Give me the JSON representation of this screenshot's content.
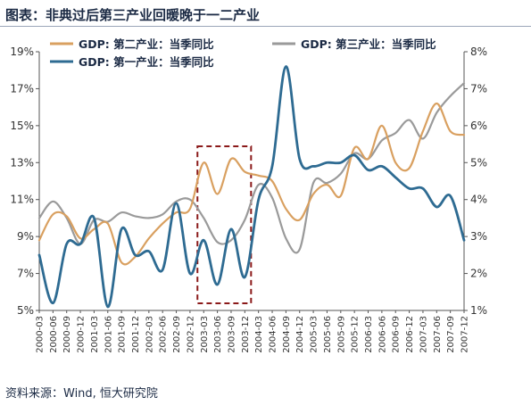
{
  "header": {
    "title": "图表：非典过后第三产业回暖晚于一二产业"
  },
  "footer": {
    "source": "资料来源：Wind, 恒大研究院"
  },
  "chart_data": {
    "type": "line",
    "title": "",
    "xlabel": "",
    "ylabel": "",
    "y_left": {
      "ticks": [
        "5%",
        "7%",
        "9%",
        "11%",
        "13%",
        "15%",
        "17%",
        "19%"
      ],
      "range": [
        5,
        19
      ]
    },
    "y_right": {
      "ticks": [
        "1%",
        "2%",
        "3%",
        "4%",
        "5%",
        "6%",
        "7%",
        "8%"
      ],
      "range": [
        1,
        8
      ]
    },
    "x_range": [
      "2000-03",
      "2007-12"
    ],
    "x_ticks": [
      "2000-03",
      "2000-06",
      "2000-09",
      "2000-12",
      "2001-03",
      "2001-06",
      "2001-09",
      "2001-12",
      "2002-03",
      "2002-06",
      "2002-09",
      "2002-12",
      "2003-03",
      "2003-06",
      "2003-09",
      "2003-12",
      "2004-03",
      "2004-06",
      "2004-09",
      "2004-12",
      "2005-03",
      "2005-06",
      "2005-09",
      "2005-12",
      "2006-03",
      "2006-06",
      "2006-09",
      "2006-12",
      "2007-03",
      "2007-06",
      "2007-09",
      "2007-12"
    ],
    "highlight_box": {
      "from": "2003-03",
      "to": "2003-12",
      "color": "#8b1a1a"
    },
    "legend_position": "top",
    "grid": false,
    "series": [
      {
        "name": "GDP: 第二产业：当季同比",
        "axis": "left",
        "color": "#d9a060",
        "points": [
          [
            "2000-03",
            8.8
          ],
          [
            "2000-06",
            10.2
          ],
          [
            "2000-09",
            10.1
          ],
          [
            "2000-12",
            8.9
          ],
          [
            "2001-03",
            9.4
          ],
          [
            "2001-06",
            9.7
          ],
          [
            "2001-09",
            7.6
          ],
          [
            "2001-12",
            7.9
          ],
          [
            "2002-03",
            8.9
          ],
          [
            "2002-06",
            9.7
          ],
          [
            "2002-09",
            10.3
          ],
          [
            "2002-12",
            10.5
          ],
          [
            "2003-03",
            13.0
          ],
          [
            "2003-06",
            11.3
          ],
          [
            "2003-09",
            13.2
          ],
          [
            "2003-12",
            12.5
          ],
          [
            "2004-03",
            12.3
          ],
          [
            "2004-06",
            12.0
          ],
          [
            "2004-09",
            10.5
          ],
          [
            "2004-12",
            9.9
          ],
          [
            "2005-03",
            11.3
          ],
          [
            "2005-06",
            11.8
          ],
          [
            "2005-09",
            11.2
          ],
          [
            "2005-12",
            13.8
          ],
          [
            "2006-03",
            13.2
          ],
          [
            "2006-06",
            15.0
          ],
          [
            "2006-09",
            13.0
          ],
          [
            "2006-12",
            12.7
          ],
          [
            "2007-03",
            14.7
          ],
          [
            "2007-06",
            16.2
          ],
          [
            "2007-09",
            14.7
          ],
          [
            "2007-12",
            14.5
          ]
        ]
      },
      {
        "name": "GDP: 第三产业：当季同比",
        "axis": "left",
        "color": "#9a9a9a",
        "points": [
          [
            "2000-03",
            10.0
          ],
          [
            "2000-06",
            10.9
          ],
          [
            "2000-09",
            10.0
          ],
          [
            "2000-12",
            8.6
          ],
          [
            "2001-03",
            9.9
          ],
          [
            "2001-06",
            9.8
          ],
          [
            "2001-09",
            10.3
          ],
          [
            "2001-12",
            10.1
          ],
          [
            "2002-03",
            10.0
          ],
          [
            "2002-06",
            10.2
          ],
          [
            "2002-09",
            10.9
          ],
          [
            "2002-12",
            11.0
          ],
          [
            "2003-03",
            10.0
          ],
          [
            "2003-06",
            8.7
          ],
          [
            "2003-09",
            8.8
          ],
          [
            "2003-12",
            9.9
          ],
          [
            "2004-03",
            11.8
          ],
          [
            "2004-06",
            11.1
          ],
          [
            "2004-09",
            8.9
          ],
          [
            "2004-12",
            8.3
          ],
          [
            "2005-03",
            11.9
          ],
          [
            "2005-06",
            11.9
          ],
          [
            "2005-09",
            12.4
          ],
          [
            "2005-12",
            13.5
          ],
          [
            "2006-03",
            13.2
          ],
          [
            "2006-06",
            14.2
          ],
          [
            "2006-09",
            14.6
          ],
          [
            "2006-12",
            15.3
          ],
          [
            "2007-03",
            14.3
          ],
          [
            "2007-06",
            15.7
          ],
          [
            "2007-09",
            16.6
          ],
          [
            "2007-12",
            17.3
          ]
        ]
      },
      {
        "name": "GDP: 第一产业：当季同比",
        "axis": "right",
        "color": "#2e6b92",
        "points": [
          [
            "2000-03",
            2.5
          ],
          [
            "2000-06",
            1.2
          ],
          [
            "2000-09",
            2.8
          ],
          [
            "2000-12",
            2.8
          ],
          [
            "2001-03",
            3.5
          ],
          [
            "2001-06",
            1.1
          ],
          [
            "2001-09",
            3.2
          ],
          [
            "2001-12",
            2.5
          ],
          [
            "2002-03",
            2.6
          ],
          [
            "2002-06",
            2.1
          ],
          [
            "2002-09",
            3.9
          ],
          [
            "2002-12",
            2.0
          ],
          [
            "2003-03",
            2.9
          ],
          [
            "2003-06",
            1.7
          ],
          [
            "2003-09",
            3.2
          ],
          [
            "2003-12",
            1.9
          ],
          [
            "2004-03",
            4.0
          ],
          [
            "2004-06",
            4.9
          ],
          [
            "2004-09",
            7.6
          ],
          [
            "2004-12",
            5.1
          ],
          [
            "2005-03",
            4.9
          ],
          [
            "2005-06",
            5.0
          ],
          [
            "2005-09",
            5.0
          ],
          [
            "2005-12",
            5.2
          ],
          [
            "2006-03",
            4.8
          ],
          [
            "2006-06",
            4.9
          ],
          [
            "2006-09",
            4.6
          ],
          [
            "2006-12",
            4.3
          ],
          [
            "2007-03",
            4.3
          ],
          [
            "2007-06",
            3.8
          ],
          [
            "2007-09",
            4.1
          ],
          [
            "2007-12",
            2.9
          ]
        ]
      }
    ]
  }
}
